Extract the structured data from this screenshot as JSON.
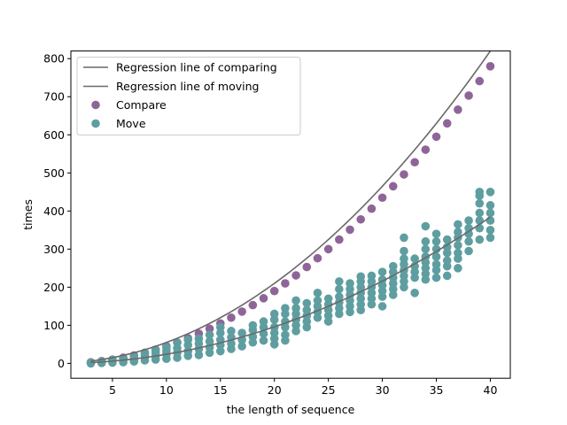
{
  "chart_data": {
    "type": "scatter",
    "xlabel": "the length of sequence",
    "ylabel": "times",
    "xlim": [
      1.15,
      41.85
    ],
    "ylim": [
      -39,
      820
    ],
    "xticks": [
      5,
      10,
      15,
      20,
      25,
      30,
      35,
      40
    ],
    "yticks": [
      0,
      100,
      200,
      300,
      400,
      500,
      600,
      700,
      800
    ],
    "grid": false,
    "legend_position": "top-left",
    "legend": [
      {
        "label": "Regression line of comparing",
        "kind": "line",
        "color": "#696969"
      },
      {
        "label": "Regression line of moving",
        "kind": "line",
        "color": "#696969"
      },
      {
        "label": "Compare",
        "kind": "marker",
        "color": "#8f6599"
      },
      {
        "label": "Move",
        "kind": "marker",
        "color": "#5f9ea0"
      }
    ],
    "series": [
      {
        "name": "Compare",
        "kind": "scatter",
        "color": "#8f6599",
        "x": [
          3,
          4,
          5,
          6,
          7,
          8,
          9,
          10,
          11,
          12,
          13,
          14,
          15,
          16,
          17,
          18,
          19,
          20,
          21,
          22,
          23,
          24,
          25,
          26,
          27,
          28,
          29,
          30,
          31,
          32,
          33,
          34,
          35,
          36,
          37,
          38,
          39,
          40
        ],
        "y": [
          3,
          6,
          10,
          15,
          21,
          28,
          36,
          45,
          55,
          66,
          78,
          91,
          105,
          120,
          136,
          153,
          171,
          190,
          210,
          231,
          253,
          276,
          300,
          325,
          351,
          378,
          406,
          435,
          465,
          496,
          528,
          561,
          595,
          630,
          666,
          703,
          741,
          780
        ]
      },
      {
        "name": "Move",
        "kind": "scatter",
        "color": "#5f9ea0",
        "points": [
          [
            3,
            0
          ],
          [
            3,
            2
          ],
          [
            4,
            1
          ],
          [
            4,
            4
          ],
          [
            4,
            6
          ],
          [
            5,
            2
          ],
          [
            5,
            6
          ],
          [
            5,
            10
          ],
          [
            6,
            3
          ],
          [
            6,
            8
          ],
          [
            6,
            13
          ],
          [
            7,
            5
          ],
          [
            7,
            10
          ],
          [
            7,
            18
          ],
          [
            8,
            8
          ],
          [
            8,
            15
          ],
          [
            8,
            22
          ],
          [
            8,
            28
          ],
          [
            9,
            10
          ],
          [
            9,
            20
          ],
          [
            9,
            28
          ],
          [
            9,
            35
          ],
          [
            10,
            12
          ],
          [
            10,
            24
          ],
          [
            10,
            33
          ],
          [
            10,
            42
          ],
          [
            11,
            15
          ],
          [
            11,
            28
          ],
          [
            11,
            40
          ],
          [
            11,
            55
          ],
          [
            12,
            20
          ],
          [
            12,
            32
          ],
          [
            12,
            48
          ],
          [
            12,
            62
          ],
          [
            13,
            22
          ],
          [
            13,
            38
          ],
          [
            13,
            52
          ],
          [
            13,
            65
          ],
          [
            14,
            28
          ],
          [
            14,
            42
          ],
          [
            14,
            58
          ],
          [
            14,
            75
          ],
          [
            15,
            32
          ],
          [
            15,
            48
          ],
          [
            15,
            62
          ],
          [
            15,
            80
          ],
          [
            15,
            95
          ],
          [
            16,
            38
          ],
          [
            16,
            52
          ],
          [
            16,
            68
          ],
          [
            16,
            85
          ],
          [
            17,
            45
          ],
          [
            17,
            62
          ],
          [
            17,
            80
          ],
          [
            18,
            55
          ],
          [
            18,
            70
          ],
          [
            18,
            88
          ],
          [
            18,
            100
          ],
          [
            19,
            60
          ],
          [
            19,
            78
          ],
          [
            19,
            95
          ],
          [
            19,
            110
          ],
          [
            20,
            50
          ],
          [
            20,
            65
          ],
          [
            20,
            80
          ],
          [
            20,
            95
          ],
          [
            20,
            115
          ],
          [
            20,
            130
          ],
          [
            21,
            60
          ],
          [
            21,
            75
          ],
          [
            21,
            95
          ],
          [
            21,
            110
          ],
          [
            21,
            130
          ],
          [
            21,
            145
          ],
          [
            22,
            85
          ],
          [
            22,
            100
          ],
          [
            22,
            115
          ],
          [
            22,
            130
          ],
          [
            22,
            145
          ],
          [
            22,
            165
          ],
          [
            23,
            95
          ],
          [
            23,
            110
          ],
          [
            23,
            125
          ],
          [
            23,
            140
          ],
          [
            23,
            158
          ],
          [
            24,
            120
          ],
          [
            24,
            135
          ],
          [
            24,
            150
          ],
          [
            24,
            165
          ],
          [
            24,
            185
          ],
          [
            25,
            110
          ],
          [
            25,
            125
          ],
          [
            25,
            140
          ],
          [
            25,
            155
          ],
          [
            25,
            170
          ],
          [
            26,
            130
          ],
          [
            26,
            145
          ],
          [
            26,
            160
          ],
          [
            26,
            175
          ],
          [
            26,
            195
          ],
          [
            26,
            215
          ],
          [
            27,
            135
          ],
          [
            27,
            150
          ],
          [
            27,
            165
          ],
          [
            27,
            180
          ],
          [
            27,
            195
          ],
          [
            27,
            210
          ],
          [
            28,
            140
          ],
          [
            28,
            155
          ],
          [
            28,
            170
          ],
          [
            28,
            185
          ],
          [
            28,
            200
          ],
          [
            28,
            215
          ],
          [
            28,
            228
          ],
          [
            29,
            155
          ],
          [
            29,
            170
          ],
          [
            29,
            185
          ],
          [
            29,
            200
          ],
          [
            29,
            215
          ],
          [
            29,
            230
          ],
          [
            30,
            150
          ],
          [
            30,
            175
          ],
          [
            30,
            190
          ],
          [
            30,
            205
          ],
          [
            30,
            220
          ],
          [
            30,
            240
          ],
          [
            31,
            180
          ],
          [
            31,
            195
          ],
          [
            31,
            210
          ],
          [
            31,
            225
          ],
          [
            31,
            240
          ],
          [
            31,
            255
          ],
          [
            32,
            200
          ],
          [
            32,
            215
          ],
          [
            32,
            230
          ],
          [
            32,
            245
          ],
          [
            32,
            260
          ],
          [
            32,
            275
          ],
          [
            32,
            295
          ],
          [
            32,
            330
          ],
          [
            33,
            185
          ],
          [
            33,
            225
          ],
          [
            33,
            240
          ],
          [
            33,
            255
          ],
          [
            33,
            275
          ],
          [
            34,
            220
          ],
          [
            34,
            235
          ],
          [
            34,
            250
          ],
          [
            34,
            265
          ],
          [
            34,
            280
          ],
          [
            34,
            300
          ],
          [
            34,
            320
          ],
          [
            34,
            360
          ],
          [
            35,
            225
          ],
          [
            35,
            245
          ],
          [
            35,
            260
          ],
          [
            35,
            280
          ],
          [
            35,
            300
          ],
          [
            35,
            320
          ],
          [
            35,
            340
          ],
          [
            36,
            230
          ],
          [
            36,
            255
          ],
          [
            36,
            270
          ],
          [
            36,
            290
          ],
          [
            36,
            305
          ],
          [
            36,
            325
          ],
          [
            37,
            250
          ],
          [
            37,
            275
          ],
          [
            37,
            290
          ],
          [
            37,
            310
          ],
          [
            37,
            330
          ],
          [
            37,
            345
          ],
          [
            37,
            365
          ],
          [
            38,
            295
          ],
          [
            38,
            320
          ],
          [
            38,
            340
          ],
          [
            38,
            355
          ],
          [
            38,
            375
          ],
          [
            39,
            325
          ],
          [
            39,
            355
          ],
          [
            39,
            375
          ],
          [
            39,
            395
          ],
          [
            39,
            420
          ],
          [
            39,
            440
          ],
          [
            39,
            450
          ],
          [
            40,
            330
          ],
          [
            40,
            350
          ],
          [
            40,
            375
          ],
          [
            40,
            395
          ],
          [
            40,
            415
          ],
          [
            40,
            450
          ]
        ]
      },
      {
        "name": "Regression line of comparing",
        "kind": "line",
        "color": "#696969",
        "fit": {
          "a": 0.5,
          "b": 0.5,
          "c": 0
        },
        "x_range": [
          3,
          40
        ]
      },
      {
        "name": "Regression line of moving",
        "kind": "line",
        "color": "#696969",
        "fit": {
          "a": 0.24,
          "b": 0,
          "c": 0
        },
        "x_range": [
          3,
          40
        ]
      }
    ]
  }
}
